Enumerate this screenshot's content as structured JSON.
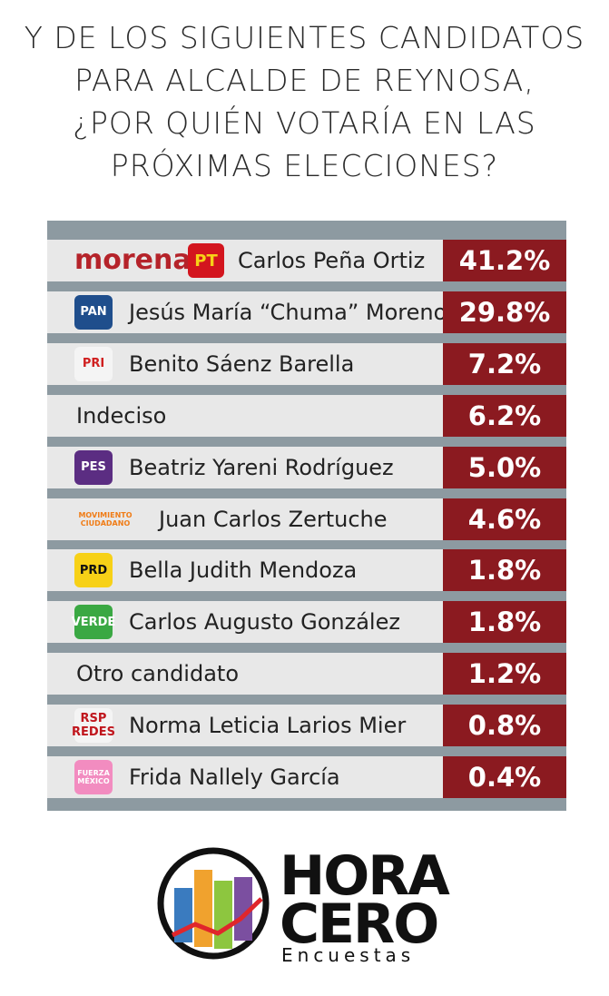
{
  "header": {
    "title_lines": [
      "Y DE LOS SIGUIENTES CANDIDATOS",
      "PARA ALCALDE DE REYNOSA,",
      "¿POR QUIÉN VOTARÍA EN LAS",
      "PRÓXIMAS ELECCIONES?"
    ]
  },
  "table": {
    "rows": [
      {
        "logo": [
          "morena",
          "PT"
        ],
        "name": "Carlos Peña Ortiz",
        "percent": "41.2%"
      },
      {
        "logo": [
          "PAN"
        ],
        "name": "Jesús María “Chuma” Moreno",
        "percent": "29.8%"
      },
      {
        "logo": [
          "PRI"
        ],
        "name": "Benito Sáenz Barella",
        "percent": "7.2%"
      },
      {
        "name": "Indeciso",
        "percent": "6.2%"
      },
      {
        "logo": [
          "PES"
        ],
        "name": "Beatriz Yareni Rodríguez",
        "percent": "5.0%"
      },
      {
        "logo": [
          "MOVIMIENTO",
          "CIUDADANO"
        ],
        "name": "Juan Carlos Zertuche",
        "percent": "4.6%"
      },
      {
        "logo": [
          "PRD"
        ],
        "name": "Bella Judith Mendoza",
        "percent": "1.8%"
      },
      {
        "logo": [
          "VERDE"
        ],
        "name": "Carlos Augusto González",
        "percent": "1.8%"
      },
      {
        "name": "Otro candidato",
        "percent": "1.2%"
      },
      {
        "logo": [
          "RSP",
          "REDES"
        ],
        "name": "Norma Leticia Larios Mier",
        "percent": "0.8%"
      },
      {
        "logo": [
          "FUERZA",
          "MÉXICO"
        ],
        "name": "Frida Nallely García",
        "percent": "0.4%"
      }
    ]
  },
  "footer": {
    "brand_top": "HORA",
    "brand_bottom": "CERO",
    "brand_sub": "Encuestas"
  }
}
